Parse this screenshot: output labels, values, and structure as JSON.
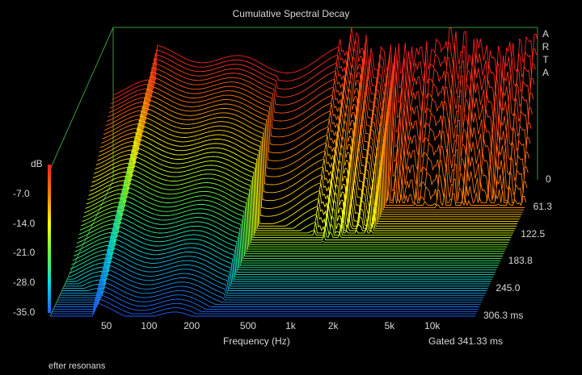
{
  "chart_data": {
    "type": "waterfall-3d",
    "title": "Cumulative Spectral Decay",
    "xlabel": "Frequency (Hz)",
    "x_scale": "log",
    "x_range": [
      20,
      20000
    ],
    "x_ticks": [
      "50",
      "100",
      "200",
      "500",
      "1k",
      "2k",
      "5k",
      "10k"
    ],
    "x_tick_values": [
      50,
      100,
      200,
      500,
      1000,
      2000,
      5000,
      10000
    ],
    "ylabel": "dB",
    "y_range": [
      -35.0,
      0
    ],
    "y_ticks": [
      "-7.0",
      "-14.0",
      "-21.0",
      "-28.0",
      "-35.0"
    ],
    "y_tick_values": [
      -7.0,
      -14.0,
      -21.0,
      -28.0,
      -35.0
    ],
    "z_label_unit": "ms",
    "z_range": [
      0,
      306.3
    ],
    "z_ticks": [
      "0",
      "61.3",
      "122.5",
      "183.8",
      "245.0",
      "306.3 ms"
    ],
    "z_tick_values": [
      0,
      61.3,
      122.5,
      183.8,
      245.0,
      306.3
    ],
    "gating_text": "Gated 341.33 ms",
    "slice_count": 60,
    "colormap": [
      "#ff2020",
      "#ff8000",
      "#ffff00",
      "#60ff40",
      "#00e0e0",
      "#2060ff"
    ]
  },
  "logo_letters": [
    "A",
    "R",
    "T",
    "A"
  ],
  "caption": "efter resonans",
  "colors": {
    "background": "#000000",
    "frame": "#3a9a3a",
    "text": "#d8d8d8"
  }
}
